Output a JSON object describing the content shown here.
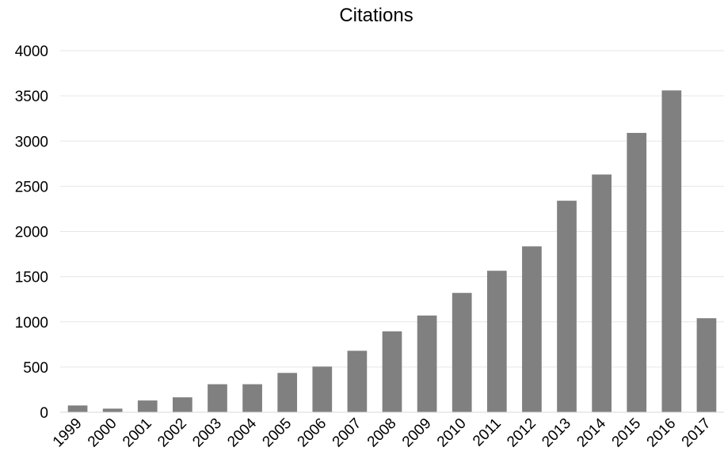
{
  "chart_data": {
    "type": "bar",
    "title": "Citations",
    "xlabel": "",
    "ylabel": "",
    "categories": [
      "1999",
      "2000",
      "2001",
      "2002",
      "2003",
      "2004",
      "2005",
      "2006",
      "2007",
      "2008",
      "2009",
      "2010",
      "2011",
      "2012",
      "2013",
      "2014",
      "2015",
      "2016",
      "2017"
    ],
    "values": [
      75,
      40,
      130,
      165,
      310,
      310,
      435,
      505,
      680,
      895,
      1070,
      1320,
      1565,
      1835,
      2340,
      2630,
      3090,
      3560,
      1040
    ],
    "ylim": [
      0,
      4000
    ],
    "yticks": [
      "0",
      "500",
      "1000",
      "1500",
      "2000",
      "2500",
      "3000",
      "3500",
      "4000"
    ],
    "grid": true,
    "legend": "none",
    "colors": {
      "bar": "#808080",
      "grid": "#e6e6e6",
      "axis": "#d9d9d9",
      "text": "#000000"
    }
  }
}
